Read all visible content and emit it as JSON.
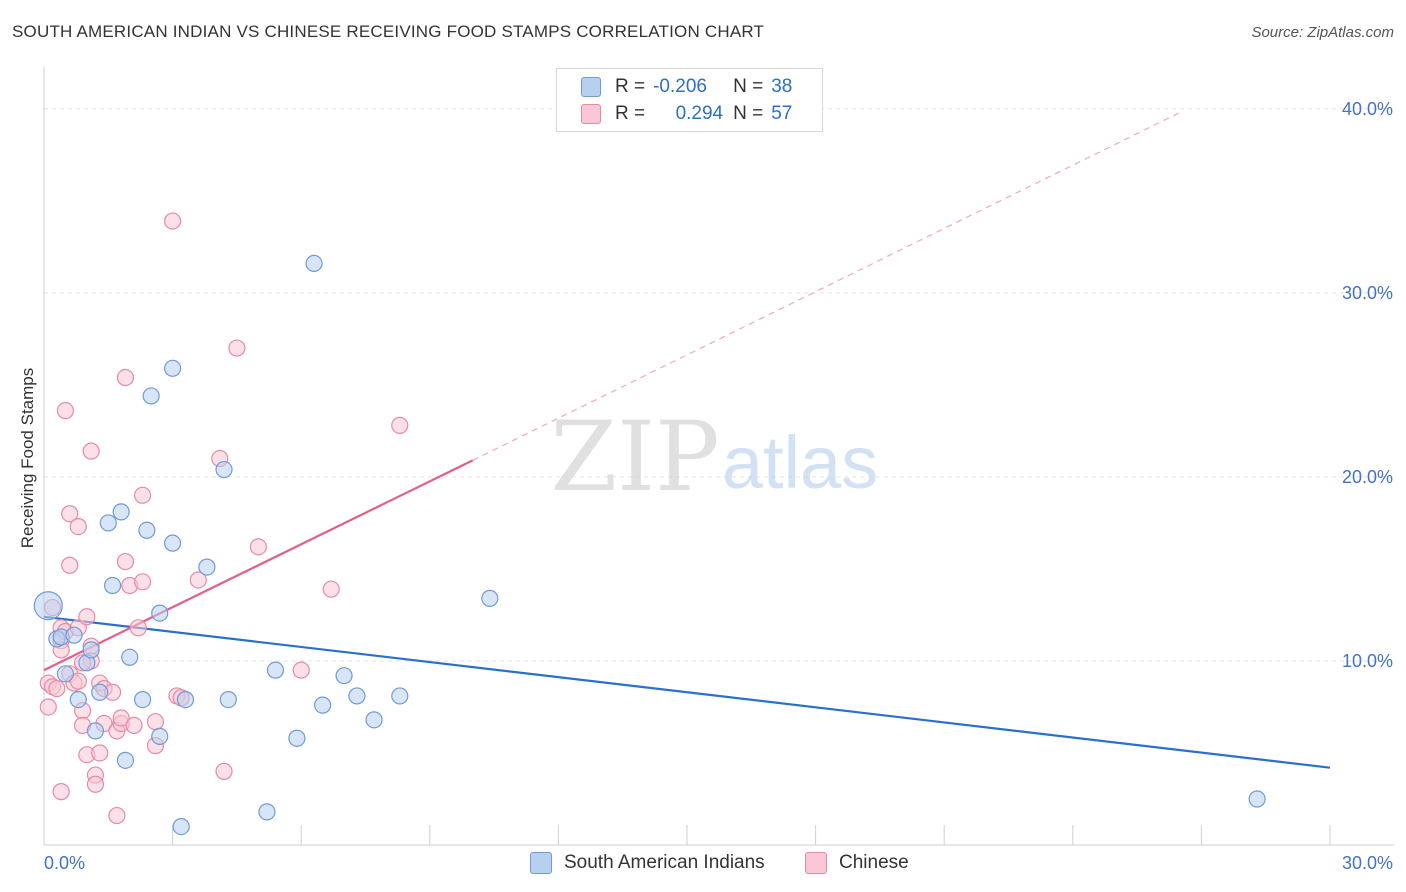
{
  "title": "SOUTH AMERICAN INDIAN VS CHINESE RECEIVING FOOD STAMPS CORRELATION CHART",
  "source": "Source: ZipAtlas.com",
  "watermark": {
    "zip": "ZIP",
    "atlas": "atlas"
  },
  "legend": {
    "r_label": "R =",
    "n_label": "N =",
    "rows": [
      {
        "r": "-0.206",
        "n": "38"
      },
      {
        "r": "0.294",
        "n": "57"
      }
    ]
  },
  "colors": {
    "blue_fill": "#b8d0f0",
    "blue_stroke": "#6f9bd6",
    "blue_line": "#2a6fcc",
    "pink_fill": "#f8c6d4",
    "pink_stroke": "#e88aa6",
    "pink_line": "#e0608a",
    "tick_label": "#4472c4"
  },
  "chart_data": {
    "type": "scatter",
    "xlabel": "",
    "ylabel": "Receiving Food Stamps",
    "xlim": [
      0,
      30
    ],
    "ylim": [
      0,
      42
    ],
    "x_tick_labels": [
      "0.0%",
      "30.0%"
    ],
    "y_ticks": [
      10,
      20,
      30,
      40
    ],
    "y_tick_labels": [
      "10.0%",
      "20.0%",
      "30.0%",
      "40.0%"
    ],
    "grid": true,
    "legend_position": "top-center and bottom",
    "series": [
      {
        "name": "South American Indians",
        "r": -0.206,
        "n": 38,
        "trend": {
          "x": [
            0,
            30
          ],
          "y": [
            12.4,
            4.2
          ]
        },
        "points": [
          [
            0.1,
            13.0
          ],
          [
            0.3,
            11.2
          ],
          [
            0.4,
            11.3
          ],
          [
            0.7,
            11.4
          ],
          [
            0.5,
            9.3
          ],
          [
            0.8,
            7.9
          ],
          [
            1.0,
            9.9
          ],
          [
            1.1,
            10.6
          ],
          [
            1.3,
            8.3
          ],
          [
            1.2,
            6.2
          ],
          [
            1.5,
            17.5
          ],
          [
            1.6,
            14.1
          ],
          [
            1.8,
            18.1
          ],
          [
            2.0,
            10.2
          ],
          [
            1.9,
            4.6
          ],
          [
            2.3,
            7.9
          ],
          [
            2.4,
            17.1
          ],
          [
            2.5,
            24.4
          ],
          [
            2.7,
            12.6
          ],
          [
            2.7,
            5.9
          ],
          [
            3.0,
            25.9
          ],
          [
            3.0,
            16.4
          ],
          [
            3.2,
            1.0
          ],
          [
            3.3,
            7.9
          ],
          [
            3.8,
            15.1
          ],
          [
            4.2,
            20.4
          ],
          [
            4.3,
            7.9
          ],
          [
            5.2,
            1.8
          ],
          [
            5.4,
            9.5
          ],
          [
            5.9,
            5.8
          ],
          [
            6.3,
            31.6
          ],
          [
            6.5,
            7.6
          ],
          [
            7.0,
            9.2
          ],
          [
            7.3,
            8.1
          ],
          [
            7.7,
            6.8
          ],
          [
            8.3,
            8.1
          ],
          [
            10.4,
            13.4
          ],
          [
            28.3,
            2.5
          ]
        ]
      },
      {
        "name": "Chinese",
        "r": 0.294,
        "n": 57,
        "trend": {
          "x": [
            0,
            10
          ],
          "y": [
            9.5,
            20.9
          ]
        },
        "trend_dashed": {
          "x": [
            10,
            26.5
          ],
          "y": [
            20.9,
            39.8
          ]
        },
        "points": [
          [
            0.1,
            8.8
          ],
          [
            0.1,
            7.5
          ],
          [
            0.2,
            8.6
          ],
          [
            0.3,
            8.5
          ],
          [
            0.2,
            12.9
          ],
          [
            0.4,
            11.8
          ],
          [
            0.4,
            11.1
          ],
          [
            0.4,
            10.6
          ],
          [
            0.5,
            11.6
          ],
          [
            0.5,
            23.6
          ],
          [
            0.6,
            18.0
          ],
          [
            0.6,
            15.2
          ],
          [
            0.6,
            9.3
          ],
          [
            0.7,
            8.8
          ],
          [
            0.8,
            8.9
          ],
          [
            0.8,
            17.3
          ],
          [
            0.8,
            11.8
          ],
          [
            0.9,
            7.3
          ],
          [
            0.9,
            6.5
          ],
          [
            1.0,
            12.4
          ],
          [
            1.0,
            4.9
          ],
          [
            1.1,
            21.4
          ],
          [
            1.1,
            10.8
          ],
          [
            1.1,
            10.0
          ],
          [
            1.2,
            3.8
          ],
          [
            1.2,
            3.3
          ],
          [
            1.3,
            5.0
          ],
          [
            1.3,
            8.8
          ],
          [
            1.4,
            6.6
          ],
          [
            1.4,
            8.5
          ],
          [
            1.6,
            8.3
          ],
          [
            1.7,
            6.2
          ],
          [
            1.7,
            1.6
          ],
          [
            1.8,
            6.6
          ],
          [
            1.8,
            6.9
          ],
          [
            1.9,
            25.4
          ],
          [
            1.9,
            15.4
          ],
          [
            2.0,
            14.1
          ],
          [
            2.1,
            6.5
          ],
          [
            2.2,
            11.8
          ],
          [
            2.3,
            14.3
          ],
          [
            2.3,
            19.0
          ],
          [
            2.6,
            6.7
          ],
          [
            2.6,
            5.4
          ],
          [
            3.0,
            33.9
          ],
          [
            3.1,
            8.1
          ],
          [
            3.2,
            8.0
          ],
          [
            3.6,
            14.4
          ],
          [
            4.1,
            21.0
          ],
          [
            4.2,
            4.0
          ],
          [
            4.5,
            27.0
          ],
          [
            5.0,
            16.2
          ],
          [
            6.0,
            9.5
          ],
          [
            6.7,
            13.9
          ],
          [
            8.3,
            22.8
          ],
          [
            0.4,
            2.9
          ],
          [
            0.9,
            9.9
          ]
        ]
      }
    ]
  }
}
